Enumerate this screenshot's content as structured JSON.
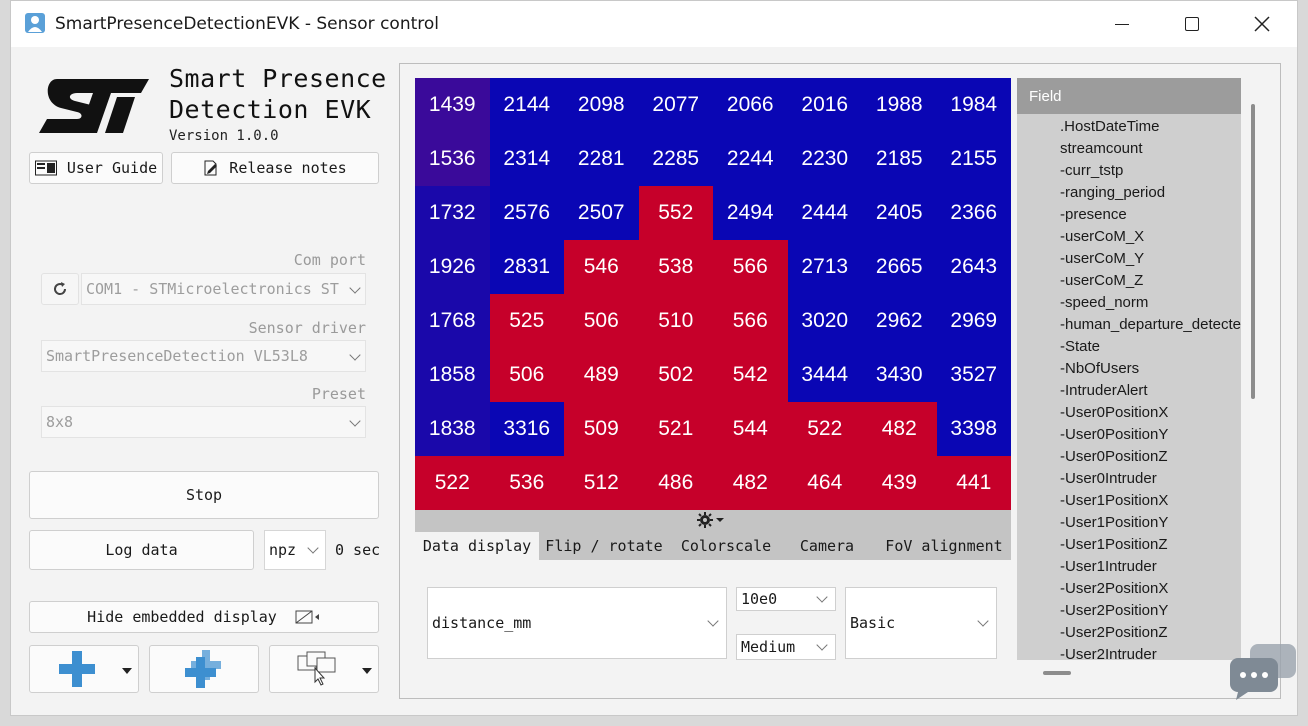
{
  "window": {
    "title": "SmartPresenceDetectionEVK - Sensor control"
  },
  "brand": {
    "line1": "Smart Presence",
    "line2": "Detection EVK",
    "version": "Version 1.0.0"
  },
  "buttons": {
    "user_guide": "User Guide",
    "release_notes": "Release notes",
    "stop": "Stop",
    "log_data": "Log data",
    "hide_embedded": "Hide embedded display"
  },
  "settings": {
    "com_port_label": "Com port",
    "com_port_value": "COM1 - STMicroelectronics ST",
    "sensor_driver_label": "Sensor driver",
    "sensor_driver_value": "SmartPresenceDetection VL53L8",
    "preset_label": "Preset",
    "preset_value": "8x8",
    "log_format": "npz",
    "log_time": "0 sec"
  },
  "grid": {
    "values": [
      [
        1439,
        2144,
        2098,
        2077,
        2066,
        2016,
        1988,
        1984
      ],
      [
        1536,
        2314,
        2281,
        2285,
        2244,
        2230,
        2185,
        2155
      ],
      [
        1732,
        2576,
        2507,
        552,
        2494,
        2444,
        2405,
        2366
      ],
      [
        1926,
        2831,
        546,
        538,
        566,
        2713,
        2665,
        2643
      ],
      [
        1768,
        525,
        506,
        510,
        566,
        3020,
        2962,
        2969
      ],
      [
        1858,
        506,
        489,
        502,
        542,
        3444,
        3430,
        3527
      ],
      [
        1838,
        3316,
        509,
        521,
        544,
        522,
        482,
        3398
      ],
      [
        522,
        536,
        512,
        486,
        482,
        464,
        439,
        441
      ]
    ],
    "colors": {
      "red": "#c6002a",
      "blue": "#0a06b4",
      "purple": "#3a0a9a",
      "navy": "#1a08aa"
    }
  },
  "tabs": [
    "Data display",
    "Flip / rotate",
    "Colorscale",
    "Camera",
    "FoV alignment"
  ],
  "display_controls": {
    "field": "distance_mm",
    "scale": "10e0",
    "size": "Medium",
    "mode": "Basic"
  },
  "fields": {
    "header": "Field",
    "items": [
      ".HostDateTime",
      "streamcount",
      "-curr_tstp",
      "-ranging_period",
      "-presence",
      "-userCoM_X",
      "-userCoM_Y",
      "-userCoM_Z",
      "-speed_norm",
      "-human_departure_detected",
      "-State",
      "-NbOfUsers",
      "-IntruderAlert",
      "-User0PositionX",
      "-User0PositionY",
      "-User0PositionZ",
      "-User0Intruder",
      "-User1PositionX",
      "-User1PositionY",
      "-User1PositionZ",
      "-User1Intruder",
      "-User2PositionX",
      "-User2PositionY",
      "-User2PositionZ",
      "-User2Intruder"
    ]
  }
}
